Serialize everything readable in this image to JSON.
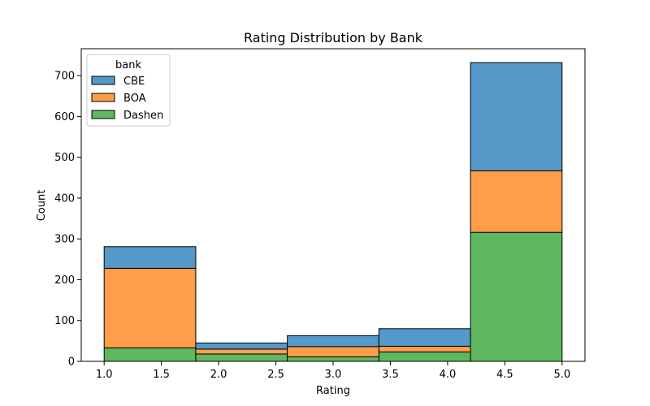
{
  "chart_data": {
    "type": "bar",
    "stacked": true,
    "title": "Rating Distribution by Bank",
    "xlabel": "Rating",
    "ylabel": "Count",
    "xlim": [
      0.8,
      5.2
    ],
    "ylim": [
      0,
      766
    ],
    "x_ticks": [
      "1.0",
      "1.5",
      "2.0",
      "2.5",
      "3.0",
      "3.5",
      "4.0",
      "4.5",
      "5.0"
    ],
    "y_ticks": [
      "0",
      "100",
      "200",
      "300",
      "400",
      "500",
      "600",
      "700"
    ],
    "bins": [
      {
        "x0": 1.0,
        "x1": 1.8
      },
      {
        "x0": 1.8,
        "x1": 2.6
      },
      {
        "x0": 2.6,
        "x1": 3.4
      },
      {
        "x0": 3.4,
        "x1": 4.2
      },
      {
        "x0": 4.2,
        "x1": 5.0
      }
    ],
    "series": [
      {
        "name": "Dashen",
        "color": "#5fb85f",
        "values": [
          33,
          18,
          11,
          23,
          316
        ]
      },
      {
        "name": "BOA",
        "color": "#ff9d4a",
        "values": [
          195,
          12,
          25,
          14,
          151
        ]
      },
      {
        "name": "CBE",
        "color": "#5599c8",
        "values": [
          53,
          15,
          27,
          43,
          265
        ]
      }
    ],
    "legend": {
      "title": "bank",
      "placement": "upper-left",
      "entries": [
        "CBE",
        "BOA",
        "Dashen"
      ]
    },
    "grid": false
  }
}
